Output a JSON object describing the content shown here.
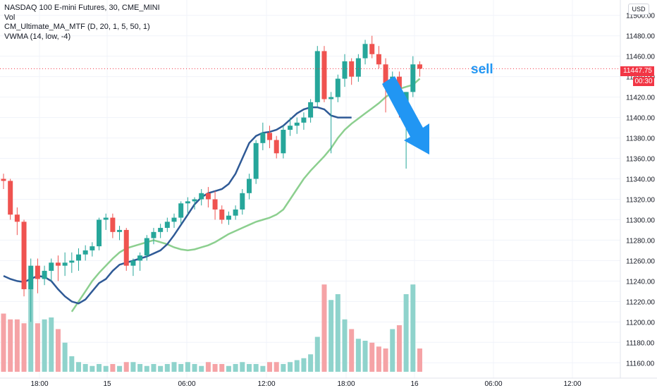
{
  "legend": {
    "symbol": "NASDAQ 100 E-mini Futures, 30, CME_MINI",
    "volume": "Vol",
    "ma_indicator": "CM_Ultimate_MA_MTF (D, 20, 1, 5, 50, 1)",
    "vwma_indicator": "VWMA (14, low, -4)"
  },
  "currency_button": "USD",
  "last_price_label": "11447.75",
  "countdown_label": "00:30",
  "annotation_text": "sell",
  "colors": {
    "up": "#26a69a",
    "down": "#ef5350",
    "vol_up": "#8fd3cc",
    "vol_down": "#f5a3a6",
    "ma_green": "#8ccf8f",
    "ma_red": "#f29896",
    "vwma": "#2f5a96",
    "arrow": "#2196f3",
    "price_line": "#f23645"
  },
  "chart_data": {
    "type": "candlestick",
    "ylim": [
      11145,
      11515
    ],
    "y_ticks": [
      "11500.00",
      "11480.00",
      "11460.00",
      "11440.00",
      "11420.00",
      "11400.00",
      "11380.00",
      "11360.00",
      "11340.00",
      "11320.00",
      "11300.00",
      "11280.00",
      "11260.00",
      "11240.00",
      "11220.00",
      "11200.00",
      "11180.00",
      "11160.00"
    ],
    "x_labels": [
      "18:00",
      "15",
      "06:00",
      "12:00",
      "18:00",
      "16",
      "06:00",
      "12:00"
    ],
    "last_price": 11447.75,
    "candles": [
      {
        "o": 11340,
        "h": 11345,
        "l": 11330,
        "c": 11338
      },
      {
        "o": 11338,
        "h": 11340,
        "l": 11300,
        "c": 11305
      },
      {
        "o": 11305,
        "h": 11312,
        "l": 11285,
        "c": 11298
      },
      {
        "o": 11298,
        "h": 11300,
        "l": 11225,
        "c": 11232
      },
      {
        "o": 11232,
        "h": 11262,
        "l": 11200,
        "c": 11255
      },
      {
        "o": 11255,
        "h": 11262,
        "l": 11228,
        "c": 11242
      },
      {
        "o": 11242,
        "h": 11255,
        "l": 11236,
        "c": 11250
      },
      {
        "o": 11250,
        "h": 11262,
        "l": 11240,
        "c": 11258
      },
      {
        "o": 11258,
        "h": 11265,
        "l": 11240,
        "c": 11255
      },
      {
        "o": 11255,
        "h": 11268,
        "l": 11245,
        "c": 11258
      },
      {
        "o": 11258,
        "h": 11268,
        "l": 11248,
        "c": 11260
      },
      {
        "o": 11260,
        "h": 11272,
        "l": 11250,
        "c": 11266
      },
      {
        "o": 11266,
        "h": 11275,
        "l": 11260,
        "c": 11270
      },
      {
        "o": 11270,
        "h": 11278,
        "l": 11264,
        "c": 11274
      },
      {
        "o": 11274,
        "h": 11302,
        "l": 11270,
        "c": 11300
      },
      {
        "o": 11300,
        "h": 11306,
        "l": 11290,
        "c": 11302
      },
      {
        "o": 11302,
        "h": 11306,
        "l": 11282,
        "c": 11288
      },
      {
        "o": 11288,
        "h": 11294,
        "l": 11280,
        "c": 11290
      },
      {
        "o": 11290,
        "h": 11292,
        "l": 11250,
        "c": 11255
      },
      {
        "o": 11255,
        "h": 11262,
        "l": 11245,
        "c": 11260
      },
      {
        "o": 11260,
        "h": 11268,
        "l": 11250,
        "c": 11265
      },
      {
        "o": 11265,
        "h": 11285,
        "l": 11260,
        "c": 11282
      },
      {
        "o": 11282,
        "h": 11292,
        "l": 11276,
        "c": 11288
      },
      {
        "o": 11288,
        "h": 11296,
        "l": 11282,
        "c": 11292
      },
      {
        "o": 11292,
        "h": 11302,
        "l": 11288,
        "c": 11298
      },
      {
        "o": 11298,
        "h": 11306,
        "l": 11292,
        "c": 11302
      },
      {
        "o": 11302,
        "h": 11318,
        "l": 11296,
        "c": 11316
      },
      {
        "o": 11316,
        "h": 11322,
        "l": 11305,
        "c": 11318
      },
      {
        "o": 11318,
        "h": 11322,
        "l": 11310,
        "c": 11320
      },
      {
        "o": 11320,
        "h": 11330,
        "l": 11314,
        "c": 11326
      },
      {
        "o": 11326,
        "h": 11332,
        "l": 11312,
        "c": 11320
      },
      {
        "o": 11320,
        "h": 11328,
        "l": 11300,
        "c": 11310
      },
      {
        "o": 11310,
        "h": 11314,
        "l": 11296,
        "c": 11300
      },
      {
        "o": 11300,
        "h": 11308,
        "l": 11295,
        "c": 11304
      },
      {
        "o": 11304,
        "h": 11314,
        "l": 11300,
        "c": 11310
      },
      {
        "o": 11310,
        "h": 11330,
        "l": 11305,
        "c": 11326
      },
      {
        "o": 11326,
        "h": 11345,
        "l": 11320,
        "c": 11340
      },
      {
        "o": 11340,
        "h": 11378,
        "l": 11335,
        "c": 11375
      },
      {
        "o": 11375,
        "h": 11395,
        "l": 11368,
        "c": 11385
      },
      {
        "o": 11385,
        "h": 11392,
        "l": 11370,
        "c": 11378
      },
      {
        "o": 11378,
        "h": 11382,
        "l": 11360,
        "c": 11365
      },
      {
        "o": 11365,
        "h": 11392,
        "l": 11360,
        "c": 11388
      },
      {
        "o": 11388,
        "h": 11400,
        "l": 11382,
        "c": 11392
      },
      {
        "o": 11392,
        "h": 11400,
        "l": 11384,
        "c": 11395
      },
      {
        "o": 11395,
        "h": 11405,
        "l": 11388,
        "c": 11400
      },
      {
        "o": 11400,
        "h": 11418,
        "l": 11395,
        "c": 11415
      },
      {
        "o": 11415,
        "h": 11470,
        "l": 11410,
        "c": 11465
      },
      {
        "o": 11465,
        "h": 11470,
        "l": 11415,
        "c": 11418
      },
      {
        "o": 11418,
        "h": 11425,
        "l": 11365,
        "c": 11420
      },
      {
        "o": 11420,
        "h": 11442,
        "l": 11415,
        "c": 11438
      },
      {
        "o": 11438,
        "h": 11462,
        "l": 11430,
        "c": 11455
      },
      {
        "o": 11455,
        "h": 11458,
        "l": 11432,
        "c": 11440
      },
      {
        "o": 11440,
        "h": 11462,
        "l": 11435,
        "c": 11458
      },
      {
        "o": 11458,
        "h": 11476,
        "l": 11452,
        "c": 11472
      },
      {
        "o": 11472,
        "h": 11480,
        "l": 11458,
        "c": 11462
      },
      {
        "o": 11462,
        "h": 11470,
        "l": 11448,
        "c": 11452
      },
      {
        "o": 11452,
        "h": 11458,
        "l": 11405,
        "c": 11430
      },
      {
        "o": 11430,
        "h": 11445,
        "l": 11425,
        "c": 11440
      },
      {
        "o": 11440,
        "h": 11445,
        "l": 11400,
        "c": 11410
      },
      {
        "o": 11410,
        "h": 11425,
        "l": 11350,
        "c": 11425
      },
      {
        "o": 11425,
        "h": 11460,
        "l": 11420,
        "c": 11452
      },
      {
        "o": 11452,
        "h": 11455,
        "l": 11440,
        "c": 11447.75
      }
    ],
    "volumes": [
      30,
      27,
      27,
      25,
      48,
      25,
      27,
      28,
      22,
      15,
      8,
      5,
      4,
      3,
      4,
      3,
      4,
      3,
      5,
      5,
      4,
      3,
      4,
      3,
      4,
      5,
      4,
      5,
      4,
      3,
      5,
      4,
      4,
      3,
      4,
      5,
      4,
      4,
      3,
      5,
      5,
      4,
      5,
      6,
      7,
      9,
      18,
      45,
      37,
      40,
      27,
      22,
      17,
      16,
      15,
      13,
      12,
      22,
      24,
      40,
      45,
      12
    ],
    "vwma": [
      11245,
      11242,
      11240,
      11239,
      11242,
      11245,
      11244,
      11240,
      11232,
      11225,
      11220,
      11218,
      11222,
      11230,
      11238,
      11242,
      11250,
      11256,
      11258,
      11260,
      11262,
      11264,
      11267,
      11270,
      11276,
      11285,
      11295,
      11305,
      11315,
      11322,
      11326,
      11328,
      11330,
      11335,
      11345,
      11360,
      11375,
      11382,
      11385,
      11386,
      11388,
      11392,
      11398,
      11404,
      11408,
      11410,
      11410,
      11408,
      11402,
      11400,
      11400,
      11400
    ],
    "ma": [
      11210,
      11220,
      11230,
      11240,
      11248,
      11255,
      11262,
      11268,
      11272,
      11274,
      11276,
      11278,
      11280,
      11278,
      11276,
      11273,
      11271,
      11270,
      11271,
      11273,
      11275,
      11278,
      11282,
      11286,
      11289,
      11292,
      11295,
      11298,
      11300,
      11302,
      11305,
      11310,
      11320,
      11330,
      11340,
      11348,
      11355,
      11362,
      11370,
      11380,
      11388,
      11394,
      11399,
      11404,
      11409,
      11414,
      11420,
      11425,
      11428,
      11430,
      11432,
      11438
    ]
  }
}
